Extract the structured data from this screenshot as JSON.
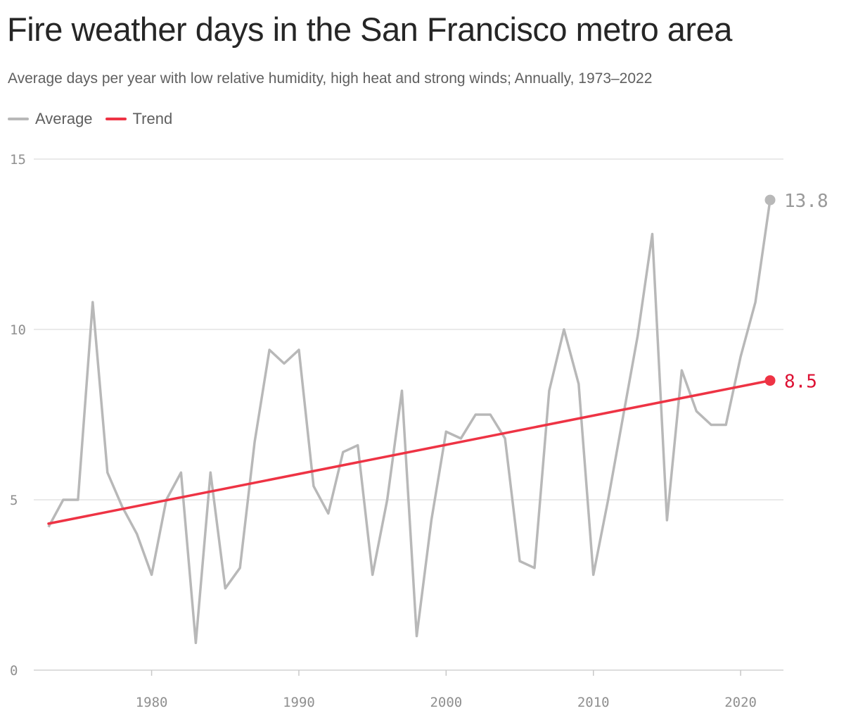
{
  "title": "Fire weather days in the San Francisco metro area",
  "subtitle": "Average days per year with low relative humidity, high heat and strong winds; Annually, 1973–2022",
  "legend": [
    {
      "label": "Average",
      "color": "#b8b8b8"
    },
    {
      "label": "Trend",
      "color": "#ee3344"
    }
  ],
  "chart_data": {
    "type": "line",
    "x": [
      1973,
      1974,
      1975,
      1976,
      1977,
      1978,
      1979,
      1980,
      1981,
      1982,
      1983,
      1984,
      1985,
      1986,
      1987,
      1988,
      1989,
      1990,
      1991,
      1992,
      1993,
      1994,
      1995,
      1996,
      1997,
      1998,
      1999,
      2000,
      2001,
      2002,
      2003,
      2004,
      2005,
      2006,
      2007,
      2008,
      2009,
      2010,
      2011,
      2012,
      2013,
      2014,
      2015,
      2016,
      2017,
      2018,
      2019,
      2020,
      2021,
      2022
    ],
    "series": [
      {
        "name": "Average",
        "color": "#b8b8b8",
        "values": [
          4.2,
          5.0,
          5.0,
          10.8,
          5.8,
          4.8,
          4.0,
          2.8,
          5.0,
          5.8,
          0.8,
          5.8,
          2.4,
          3.0,
          6.7,
          9.4,
          9.0,
          9.4,
          5.4,
          4.6,
          6.4,
          6.6,
          2.8,
          5.0,
          8.2,
          1.0,
          4.4,
          7.0,
          6.8,
          7.5,
          7.5,
          6.8,
          3.2,
          3.0,
          8.2,
          10.0,
          8.4,
          2.8,
          5.0,
          7.4,
          9.8,
          12.8,
          4.4,
          8.8,
          7.6,
          7.2,
          7.2,
          9.2,
          10.8,
          13.8
        ]
      },
      {
        "name": "Trend",
        "color": "#ee3344",
        "type": "linear",
        "start": [
          1973,
          4.3
        ],
        "end": [
          2022,
          8.5
        ]
      }
    ],
    "end_labels": [
      {
        "series": "Average",
        "text": "13.8",
        "value": 13.8,
        "color": "#999999"
      },
      {
        "series": "Trend",
        "text": "8.5",
        "value": 8.5,
        "color": "#dd1133"
      }
    ],
    "xlim": [
      1973,
      2022
    ],
    "ylim": [
      0,
      15
    ],
    "yticks": [
      0,
      5,
      10,
      15
    ],
    "xticks": [
      1980,
      1990,
      2000,
      2010,
      2020
    ],
    "grid": true,
    "legend_position": "top-left"
  }
}
